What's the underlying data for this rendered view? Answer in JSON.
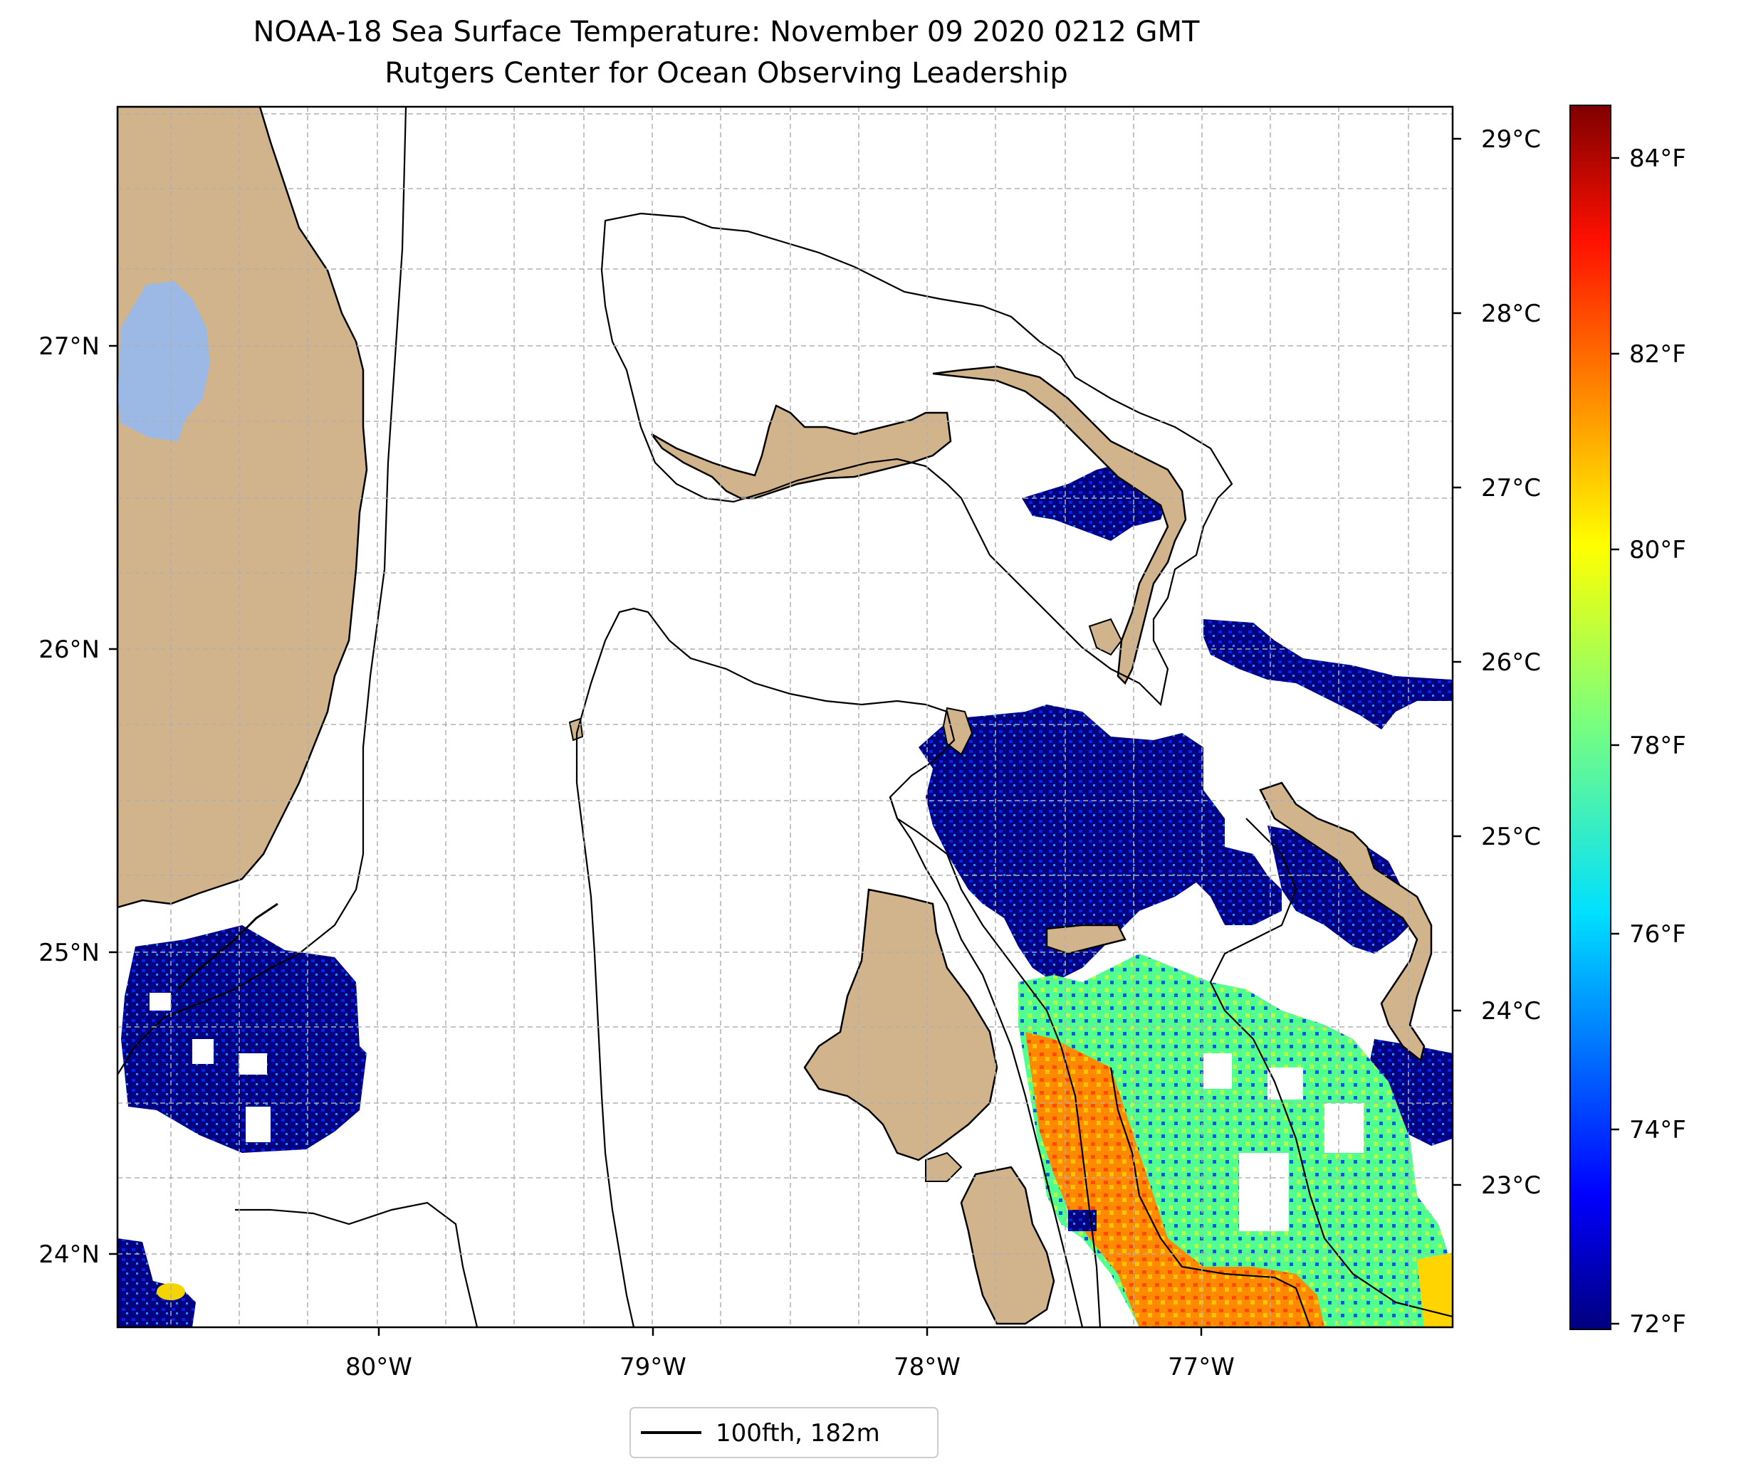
{
  "title": "NOAA-18 Sea Surface Temperature: November 09 2020 0212 GMT",
  "subtitle": "Rutgers Center for Ocean Observing Leadership",
  "map": {
    "lon_range": [
      -80.95,
      -76.1
    ],
    "lat_range": [
      23.75,
      27.82
    ],
    "lon_ticks": [
      "80°W",
      "79°W",
      "78°W",
      "77°W"
    ],
    "lat_ticks": [
      "27°N",
      "26°N",
      "25°N",
      "24°N"
    ],
    "grid": true,
    "land_color": "#d2b48c",
    "lake_color": "#9cb9e6",
    "legend": {
      "label": "100fth, 182m",
      "placement": "bottom-center"
    }
  },
  "colorbar": {
    "colormap": "jet",
    "celsius_ticks": [
      "29°C",
      "28°C",
      "27°C",
      "26°C",
      "25°C",
      "24°C",
      "23°C"
    ],
    "fahrenheit_ticks": [
      "84°F",
      "82°F",
      "80°F",
      "78°F",
      "76°F",
      "74°F",
      "72°F"
    ],
    "range_f": [
      72,
      84.5
    ]
  }
}
